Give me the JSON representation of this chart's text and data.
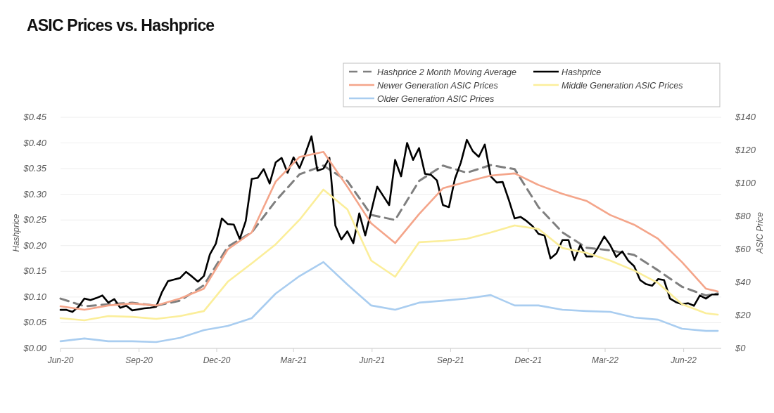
{
  "chart_data": {
    "type": "line",
    "title": "ASIC Prices vs. Hashprice",
    "ylabel": "Hashprice",
    "y2label": "ASIC Price",
    "legend": "top right",
    "grid": "y",
    "marker": "none",
    "x": [
      "2020-06-01",
      "2020-06-08",
      "2020-06-15",
      "2020-06-22",
      "2020-06-29",
      "2020-07-06",
      "2020-07-13",
      "2020-07-20",
      "2020-07-27",
      "2020-08-03",
      "2020-08-10",
      "2020-08-17",
      "2020-08-24",
      "2020-08-31",
      "2020-09-07",
      "2020-09-14",
      "2020-09-21",
      "2020-09-28",
      "2020-10-05",
      "2020-10-12",
      "2020-10-19",
      "2020-10-26",
      "2020-11-02",
      "2020-11-09",
      "2020-11-16",
      "2020-11-23",
      "2020-11-30",
      "2020-12-07",
      "2020-12-14",
      "2020-12-21",
      "2020-12-28",
      "2021-01-04",
      "2021-01-11",
      "2021-01-18",
      "2021-01-25",
      "2021-02-01",
      "2021-02-08",
      "2021-02-15",
      "2021-02-22",
      "2021-03-01",
      "2021-03-08",
      "2021-03-15",
      "2021-03-22",
      "2021-03-29",
      "2021-04-05",
      "2021-04-12",
      "2021-04-19",
      "2021-04-26",
      "2021-05-03",
      "2021-05-10",
      "2021-05-17",
      "2021-05-24",
      "2021-05-31",
      "2021-06-07",
      "2021-06-14",
      "2021-06-21",
      "2021-06-28",
      "2021-07-05",
      "2021-07-12",
      "2021-07-19",
      "2021-07-26",
      "2021-08-02",
      "2021-08-09",
      "2021-08-16",
      "2021-08-23",
      "2021-08-30",
      "2021-09-06",
      "2021-09-13",
      "2021-09-20",
      "2021-09-27",
      "2021-10-04",
      "2021-10-11",
      "2021-10-18",
      "2021-10-25",
      "2021-11-01",
      "2021-11-08",
      "2021-11-15",
      "2021-11-22",
      "2021-11-29",
      "2021-12-06",
      "2021-12-13",
      "2021-12-20",
      "2021-12-27",
      "2022-01-03",
      "2022-01-10",
      "2022-01-17",
      "2022-01-24",
      "2022-01-31",
      "2022-02-07",
      "2022-02-14",
      "2022-02-21",
      "2022-02-28",
      "2022-03-07",
      "2022-03-14",
      "2022-03-21",
      "2022-03-28",
      "2022-04-04",
      "2022-04-11",
      "2022-04-18",
      "2022-04-25",
      "2022-05-02",
      "2022-05-09",
      "2022-05-16",
      "2022-05-23",
      "2022-05-30",
      "2022-06-06",
      "2022-06-13",
      "2022-06-20",
      "2022-06-27",
      "2022-07-04",
      "2022-07-11"
    ],
    "xlim": [
      "2020-06-01",
      "2022-07-15"
    ],
    "xticks": [
      {
        "value": "2020-06-01",
        "label": "Jun-20"
      },
      {
        "value": "2020-09-01",
        "label": "Sep-20"
      },
      {
        "value": "2020-12-01",
        "label": "Dec-20"
      },
      {
        "value": "2021-03-01",
        "label": "Mar-21"
      },
      {
        "value": "2021-06-01",
        "label": "Jun-21"
      },
      {
        "value": "2021-09-01",
        "label": "Sep-21"
      },
      {
        "value": "2021-12-01",
        "label": "Dec-21"
      },
      {
        "value": "2022-03-01",
        "label": "Mar-22"
      },
      {
        "value": "2022-06-01",
        "label": "Jun-22"
      }
    ],
    "ylim": [
      0,
      0.45
    ],
    "yticks": [
      {
        "value": 0,
        "label": "$0.00"
      },
      {
        "value": 0.05,
        "label": "$0.05"
      },
      {
        "value": 0.1,
        "label": "$0.10"
      },
      {
        "value": 0.15,
        "label": "$0.15"
      },
      {
        "value": 0.2,
        "label": "$0.20"
      },
      {
        "value": 0.25,
        "label": "$0.25"
      },
      {
        "value": 0.3,
        "label": "$0.30"
      },
      {
        "value": 0.35,
        "label": "$0.35"
      },
      {
        "value": 0.4,
        "label": "$0.40"
      },
      {
        "value": 0.45,
        "label": "$0.45"
      }
    ],
    "y2lim": [
      0,
      140
    ],
    "y2ticks": [
      {
        "value": 0,
        "label": "$0"
      },
      {
        "value": 20,
        "label": "$20"
      },
      {
        "value": 40,
        "label": "$40"
      },
      {
        "value": 60,
        "label": "$60"
      },
      {
        "value": 80,
        "label": "$80"
      },
      {
        "value": 100,
        "label": "$100"
      },
      {
        "value": 120,
        "label": "$120"
      },
      {
        "value": 140,
        "label": "$140"
      }
    ],
    "series": [
      {
        "name": "Hashprice 2 Month Moving Average",
        "color": "#7f7f7f",
        "line_style": "dashed",
        "x": [
          "2020-06-01",
          "2020-06-29",
          "2020-07-27",
          "2020-08-24",
          "2020-09-21",
          "2020-10-19",
          "2020-11-16",
          "2020-12-14",
          "2021-01-11",
          "2021-02-08",
          "2021-03-08",
          "2021-04-05",
          "2021-05-03",
          "2021-05-31",
          "2021-06-28",
          "2021-07-26",
          "2021-08-23",
          "2021-09-20",
          "2021-10-18",
          "2021-11-15",
          "2021-12-13",
          "2022-01-10",
          "2022-02-07",
          "2022-03-07",
          "2022-04-04",
          "2022-05-02",
          "2022-05-30",
          "2022-06-27",
          "2022-07-11"
        ],
        "values": [
          0.097,
          0.082,
          0.086,
          0.089,
          0.083,
          0.093,
          0.123,
          0.198,
          0.226,
          0.287,
          0.339,
          0.356,
          0.326,
          0.26,
          0.25,
          0.326,
          0.356,
          0.342,
          0.357,
          0.349,
          0.275,
          0.226,
          0.196,
          0.191,
          0.182,
          0.152,
          0.12,
          0.103,
          0.107
        ]
      },
      {
        "name": "Hashprice",
        "color": "#000000",
        "line_style": "solid",
        "values": [
          0.075,
          0.075,
          0.071,
          0.081,
          0.097,
          0.094,
          0.098,
          0.103,
          0.089,
          0.096,
          0.079,
          0.083,
          0.074,
          0.076,
          0.078,
          0.079,
          0.081,
          0.11,
          0.131,
          0.134,
          0.137,
          0.149,
          0.14,
          0.13,
          0.141,
          0.183,
          0.204,
          0.253,
          0.242,
          0.241,
          0.213,
          0.248,
          0.33,
          0.332,
          0.349,
          0.321,
          0.362,
          0.371,
          0.342,
          0.372,
          0.351,
          0.38,
          0.413,
          0.346,
          0.35,
          0.371,
          0.239,
          0.212,
          0.228,
          0.205,
          0.263,
          0.22,
          0.267,
          0.315,
          0.297,
          0.279,
          0.367,
          0.335,
          0.4,
          0.367,
          0.39,
          0.34,
          0.338,
          0.327,
          0.279,
          0.275,
          0.33,
          0.362,
          0.406,
          0.384,
          0.373,
          0.397,
          0.335,
          0.323,
          0.324,
          0.29,
          0.253,
          0.256,
          0.248,
          0.238,
          0.223,
          0.22,
          0.175,
          0.185,
          0.211,
          0.211,
          0.172,
          0.201,
          0.179,
          0.179,
          0.197,
          0.218,
          0.201,
          0.178,
          0.189,
          0.171,
          0.16,
          0.133,
          0.125,
          0.122,
          0.135,
          0.133,
          0.097,
          0.09,
          0.086,
          0.088,
          0.083,
          0.103,
          0.097,
          0.105,
          0.105
        ]
      },
      {
        "name": "Newer Generation ASIC Prices",
        "color": "#f4a58a",
        "line_style": "solid",
        "axis": "y2",
        "x": [
          "2020-06-01",
          "2020-06-29",
          "2020-07-27",
          "2020-08-24",
          "2020-09-21",
          "2020-10-19",
          "2020-11-16",
          "2020-12-14",
          "2021-01-11",
          "2021-02-08",
          "2021-03-08",
          "2021-04-05",
          "2021-05-03",
          "2021-05-31",
          "2021-06-28",
          "2021-07-26",
          "2021-08-23",
          "2021-09-20",
          "2021-10-18",
          "2021-11-15",
          "2021-12-13",
          "2022-01-10",
          "2022-02-07",
          "2022-03-07",
          "2022-04-04",
          "2022-05-02",
          "2022-05-30",
          "2022-06-27",
          "2022-07-11"
        ],
        "values": [
          25.5,
          23.4,
          26,
          27.2,
          26,
          30.2,
          36.2,
          60,
          70.2,
          101,
          116,
          119,
          98,
          75.7,
          63.8,
          81.3,
          97,
          101,
          104.7,
          106,
          99,
          93.6,
          89.4,
          80.8,
          74.9,
          66.4,
          52.3,
          36.2,
          34.5
        ]
      },
      {
        "name": "Middle Generation ASIC Prices",
        "color": "#fbee9a",
        "line_style": "solid",
        "axis": "y2",
        "x": [
          "2020-06-01",
          "2020-06-29",
          "2020-07-27",
          "2020-08-24",
          "2020-09-21",
          "2020-10-19",
          "2020-11-16",
          "2020-12-14",
          "2021-01-11",
          "2021-02-08",
          "2021-03-08",
          "2021-04-05",
          "2021-05-03",
          "2021-05-31",
          "2021-06-28",
          "2021-07-26",
          "2021-08-23",
          "2021-09-20",
          "2021-10-18",
          "2021-11-15",
          "2021-12-13",
          "2022-01-10",
          "2022-02-07",
          "2022-03-07",
          "2022-04-04",
          "2022-05-02",
          "2022-05-30",
          "2022-06-27",
          "2022-07-11"
        ],
        "values": [
          18.3,
          17,
          19.6,
          19.1,
          17.9,
          19.6,
          22.6,
          40.4,
          51.5,
          63,
          77.9,
          96.2,
          84.3,
          53.2,
          43.4,
          64.3,
          65.1,
          66.4,
          70.2,
          74.5,
          72.3,
          60.8,
          57.9,
          53.2,
          47.2,
          39.6,
          26.8,
          21.3,
          20.4
        ]
      },
      {
        "name": "Older Generation ASIC Prices",
        "color": "#a9cdf0",
        "line_style": "solid",
        "axis": "y2",
        "x": [
          "2020-06-01",
          "2020-06-29",
          "2020-07-27",
          "2020-08-24",
          "2020-09-21",
          "2020-10-19",
          "2020-11-16",
          "2020-12-14",
          "2021-01-11",
          "2021-02-08",
          "2021-03-08",
          "2021-04-05",
          "2021-05-03",
          "2021-05-31",
          "2021-06-28",
          "2021-07-26",
          "2021-08-23",
          "2021-09-20",
          "2021-10-18",
          "2021-11-15",
          "2021-12-13",
          "2022-01-10",
          "2022-02-07",
          "2022-03-07",
          "2022-04-04",
          "2022-05-02",
          "2022-05-30",
          "2022-06-27",
          "2022-07-11"
        ],
        "values": [
          4.3,
          6,
          4.3,
          4.3,
          3.8,
          6.4,
          11.1,
          13.6,
          18.3,
          33.2,
          43.8,
          52.3,
          38.7,
          26,
          23.4,
          27.7,
          28.9,
          30.2,
          32.3,
          26,
          26,
          23.4,
          22.6,
          22.1,
          18.7,
          17.4,
          11.9,
          10.6,
          10.6
        ]
      }
    ]
  }
}
